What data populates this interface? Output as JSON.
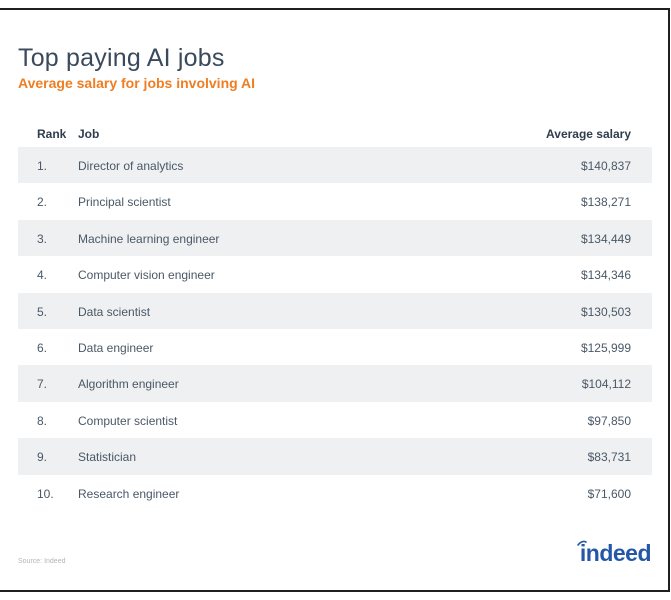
{
  "title": "Top paying AI jobs",
  "subtitle": "Average salary for jobs involving AI",
  "columns": {
    "rank": "Rank",
    "job": "Job",
    "salary": "Average salary"
  },
  "rows": [
    {
      "rank": "1.",
      "job": "Director of analytics",
      "salary": "$140,837"
    },
    {
      "rank": "2.",
      "job": "Principal scientist",
      "salary": "$138,271"
    },
    {
      "rank": "3.",
      "job": "Machine learning engineer",
      "salary": "$134,449"
    },
    {
      "rank": "4.",
      "job": "Computer vision engineer",
      "salary": "$134,346"
    },
    {
      "rank": "5.",
      "job": "Data scientist",
      "salary": "$130,503"
    },
    {
      "rank": "6.",
      "job": "Data engineer",
      "salary": "$125,999"
    },
    {
      "rank": "7.",
      "job": "Algorithm engineer",
      "salary": "$104,112"
    },
    {
      "rank": "8.",
      "job": "Computer scientist",
      "salary": "$97,850"
    },
    {
      "rank": "9.",
      "job": "Statistician",
      "salary": "$83,731"
    },
    {
      "rank": "10.",
      "job": "Research engineer",
      "salary": "$71,600"
    }
  ],
  "source": "Source: Indeed",
  "logo": "indeed",
  "colors": {
    "title": "#3a4a5c",
    "subtitle": "#ef7d22",
    "row_shade": "#eef0f2",
    "logo": "#2557a7"
  }
}
